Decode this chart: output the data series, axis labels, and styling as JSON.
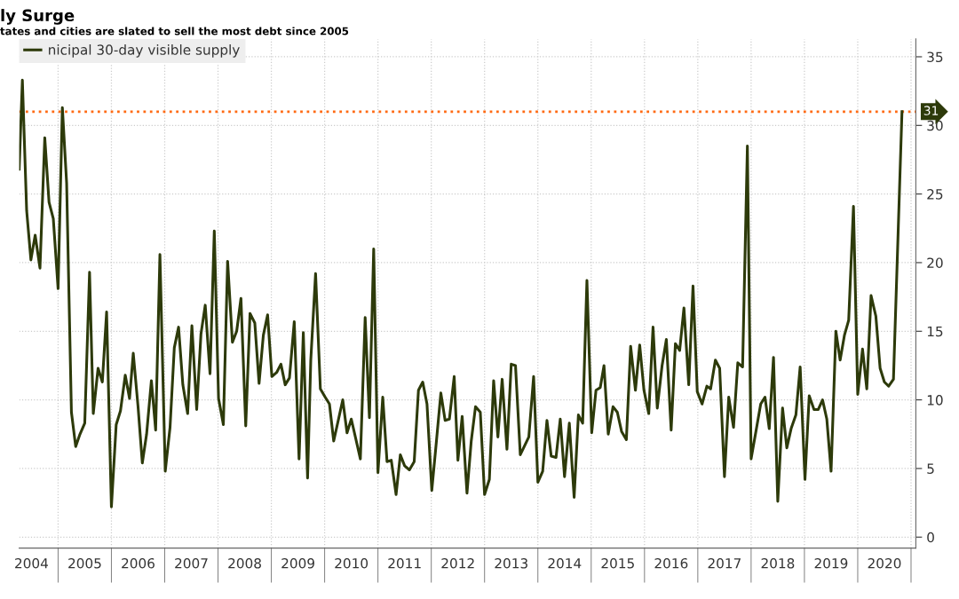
{
  "chart_data": {
    "type": "line",
    "title": "ly Surge",
    "subtitle": "tates and cities are slated to sell the most debt since 2005",
    "legend": "top left",
    "grid": true,
    "line_style": "solid",
    "marker": "none",
    "xlim": [
      2004.27,
      2021.09
    ],
    "ylim": [
      -0.8,
      36.3
    ],
    "xticks": [
      {
        "value": 2004.5,
        "label": "2004"
      },
      {
        "value": 2005,
        "label": null
      },
      {
        "value": 2005.5,
        "label": "2005"
      },
      {
        "value": 2006,
        "label": null
      },
      {
        "value": 2006.5,
        "label": "2006"
      },
      {
        "value": 2007,
        "label": null
      },
      {
        "value": 2007.5,
        "label": "2007"
      },
      {
        "value": 2008,
        "label": null
      },
      {
        "value": 2008.5,
        "label": "2008"
      },
      {
        "value": 2009,
        "label": null
      },
      {
        "value": 2009.5,
        "label": "2009"
      },
      {
        "value": 2010,
        "label": null
      },
      {
        "value": 2010.5,
        "label": "2010"
      },
      {
        "value": 2011,
        "label": null
      },
      {
        "value": 2011.5,
        "label": "2011"
      },
      {
        "value": 2012,
        "label": null
      },
      {
        "value": 2012.5,
        "label": "2012"
      },
      {
        "value": 2013,
        "label": null
      },
      {
        "value": 2013.5,
        "label": "2013"
      },
      {
        "value": 2014,
        "label": null
      },
      {
        "value": 2014.5,
        "label": "2014"
      },
      {
        "value": 2015,
        "label": null
      },
      {
        "value": 2015.5,
        "label": "2015"
      },
      {
        "value": 2016,
        "label": null
      },
      {
        "value": 2016.5,
        "label": "2016"
      },
      {
        "value": 2017,
        "label": null
      },
      {
        "value": 2017.5,
        "label": "2017"
      },
      {
        "value": 2018,
        "label": null
      },
      {
        "value": 2018.5,
        "label": "2018"
      },
      {
        "value": 2019,
        "label": null
      },
      {
        "value": 2019.5,
        "label": "2019"
      },
      {
        "value": 2020,
        "label": null
      },
      {
        "value": 2020.5,
        "label": "2020"
      },
      {
        "value": 2021,
        "label": null
      }
    ],
    "yticks": [
      0,
      5,
      10,
      15,
      20,
      25,
      30,
      35
    ],
    "ref_lines": [
      {
        "axis": "y",
        "value": 31,
        "label": "31",
        "color": "#ff6a13",
        "line_style": "dotted"
      }
    ],
    "series": [
      {
        "name": "nicipal 30-day visible supply",
        "color": "#2d3a0a",
        "x": [
          2004.27,
          2004.33,
          2004.41,
          2004.49,
          2004.57,
          2004.66,
          2004.75,
          2004.83,
          2004.91,
          2005.0,
          2005.08,
          2005.16,
          2005.25,
          2005.33,
          2005.41,
          2005.5,
          2005.59,
          2005.66,
          2005.75,
          2005.83,
          2005.91,
          2006.0,
          2006.09,
          2006.17,
          2006.26,
          2006.34,
          2006.41,
          2006.5,
          2006.58,
          2006.66,
          2006.75,
          2006.83,
          2006.91,
          2007.01,
          2007.1,
          2007.18,
          2007.26,
          2007.34,
          2007.43,
          2007.51,
          2007.6,
          2007.68,
          2007.76,
          2007.85,
          2007.93,
          2008.01,
          2008.1,
          2008.18,
          2008.27,
          2008.35,
          2008.43,
          2008.52,
          2008.6,
          2008.69,
          2008.77,
          2008.85,
          2008.93,
          2009.01,
          2009.1,
          2009.18,
          2009.26,
          2009.34,
          2009.43,
          2009.52,
          2009.6,
          2009.68,
          2009.74,
          2009.83,
          2009.92,
          2010.01,
          2010.09,
          2010.17,
          2010.34,
          2010.42,
          2010.5,
          2010.67,
          2010.76,
          2010.84,
          2010.92,
          2011.0,
          2011.09,
          2011.17,
          2011.25,
          2011.34,
          2011.42,
          2011.5,
          2011.59,
          2011.68,
          2011.76,
          2011.84,
          2011.92,
          2012.01,
          2012.09,
          2012.18,
          2012.26,
          2012.34,
          2012.43,
          2012.5,
          2012.58,
          2012.67,
          2012.75,
          2012.83,
          2012.92,
          2013.0,
          2013.09,
          2013.17,
          2013.25,
          2013.33,
          2013.42,
          2013.5,
          2013.58,
          2013.67,
          2013.83,
          2013.92,
          2014.0,
          2014.09,
          2014.17,
          2014.25,
          2014.34,
          2014.42,
          2014.5,
          2014.59,
          2014.68,
          2014.76,
          2014.84,
          2014.92,
          2015.01,
          2015.09,
          2015.17,
          2015.24,
          2015.32,
          2015.41,
          2015.49,
          2015.57,
          2015.66,
          2015.74,
          2015.83,
          2015.91,
          2015.99,
          2016.08,
          2016.16,
          2016.24,
          2016.33,
          2016.41,
          2016.5,
          2016.58,
          2016.66,
          2016.74,
          2016.83,
          2016.91,
          2016.99,
          2017.08,
          2017.17,
          2017.24,
          2017.33,
          2017.41,
          2017.5,
          2017.58,
          2017.67,
          2017.75,
          2017.84,
          2017.93,
          2018.0,
          2018.09,
          2018.18,
          2018.26,
          2018.34,
          2018.42,
          2018.5,
          2018.59,
          2018.67,
          2018.75,
          2018.84,
          2018.92,
          2019.01,
          2019.09,
          2019.18,
          2019.26,
          2019.34,
          2019.42,
          2019.5,
          2019.59,
          2019.67,
          2019.75,
          2019.83,
          2019.92,
          2020.0,
          2020.09,
          2020.17,
          2020.25,
          2020.34,
          2020.42,
          2020.5,
          2020.58,
          2020.67,
          2020.83
        ],
        "values": [
          26.8,
          33.3,
          23.8,
          20.2,
          22.0,
          19.6,
          29.1,
          24.4,
          23.2,
          18.1,
          31.3,
          25.8,
          9.1,
          6.6,
          7.5,
          8.3,
          19.3,
          9.0,
          12.3,
          11.3,
          16.4,
          2.2,
          8.2,
          9.2,
          11.8,
          10.1,
          13.4,
          9.5,
          5.4,
          7.5,
          11.4,
          7.8,
          20.6,
          4.8,
          8.0,
          13.8,
          15.3,
          11.1,
          9.0,
          15.4,
          9.3,
          14.8,
          16.9,
          11.9,
          22.3,
          10.1,
          8.2,
          20.1,
          14.2,
          15.0,
          17.4,
          8.1,
          16.3,
          15.6,
          11.2,
          14.7,
          16.2,
          11.7,
          12.0,
          12.6,
          11.1,
          11.6,
          15.7,
          5.7,
          14.9,
          4.3,
          12.9,
          19.2,
          10.8,
          10.2,
          9.7,
          7.0,
          10.0,
          7.6,
          8.6,
          5.7,
          16.0,
          8.7,
          21.0,
          4.7,
          10.2,
          5.5,
          5.6,
          3.1,
          6.0,
          5.2,
          4.9,
          5.5,
          10.7,
          11.3,
          9.7,
          3.4,
          6.7,
          10.5,
          8.5,
          8.6,
          11.7,
          5.6,
          8.8,
          3.2,
          7.0,
          9.5,
          9.1,
          3.1,
          4.2,
          11.4,
          7.3,
          11.5,
          6.4,
          12.6,
          12.5,
          6.0,
          7.3,
          11.7,
          4.0,
          4.8,
          8.5,
          5.9,
          5.8,
          8.6,
          4.4,
          8.3,
          2.9,
          8.9,
          8.3,
          18.7,
          7.6,
          10.7,
          10.9,
          12.5,
          7.5,
          9.5,
          9.1,
          7.7,
          7.1,
          13.9,
          10.7,
          14.0,
          10.7,
          9.0,
          15.3,
          9.4,
          12.5,
          14.4,
          7.8,
          14.1,
          13.6,
          16.7,
          11.1,
          18.3,
          10.6,
          9.7,
          11.0,
          10.8,
          12.9,
          12.3,
          4.4,
          10.2,
          8.0,
          12.7,
          12.4,
          28.5,
          5.7,
          7.7,
          9.7,
          10.2,
          7.9,
          13.1,
          2.6,
          9.4,
          6.5,
          7.9,
          8.9,
          12.4,
          4.2,
          10.3,
          9.3,
          9.3,
          10.0,
          8.6,
          4.8,
          15.0,
          12.9,
          14.7,
          15.8,
          24.1,
          10.4,
          13.7,
          10.8,
          17.6,
          16.1,
          12.3,
          11.3,
          11.0,
          11.5,
          31.0
        ]
      }
    ]
  }
}
